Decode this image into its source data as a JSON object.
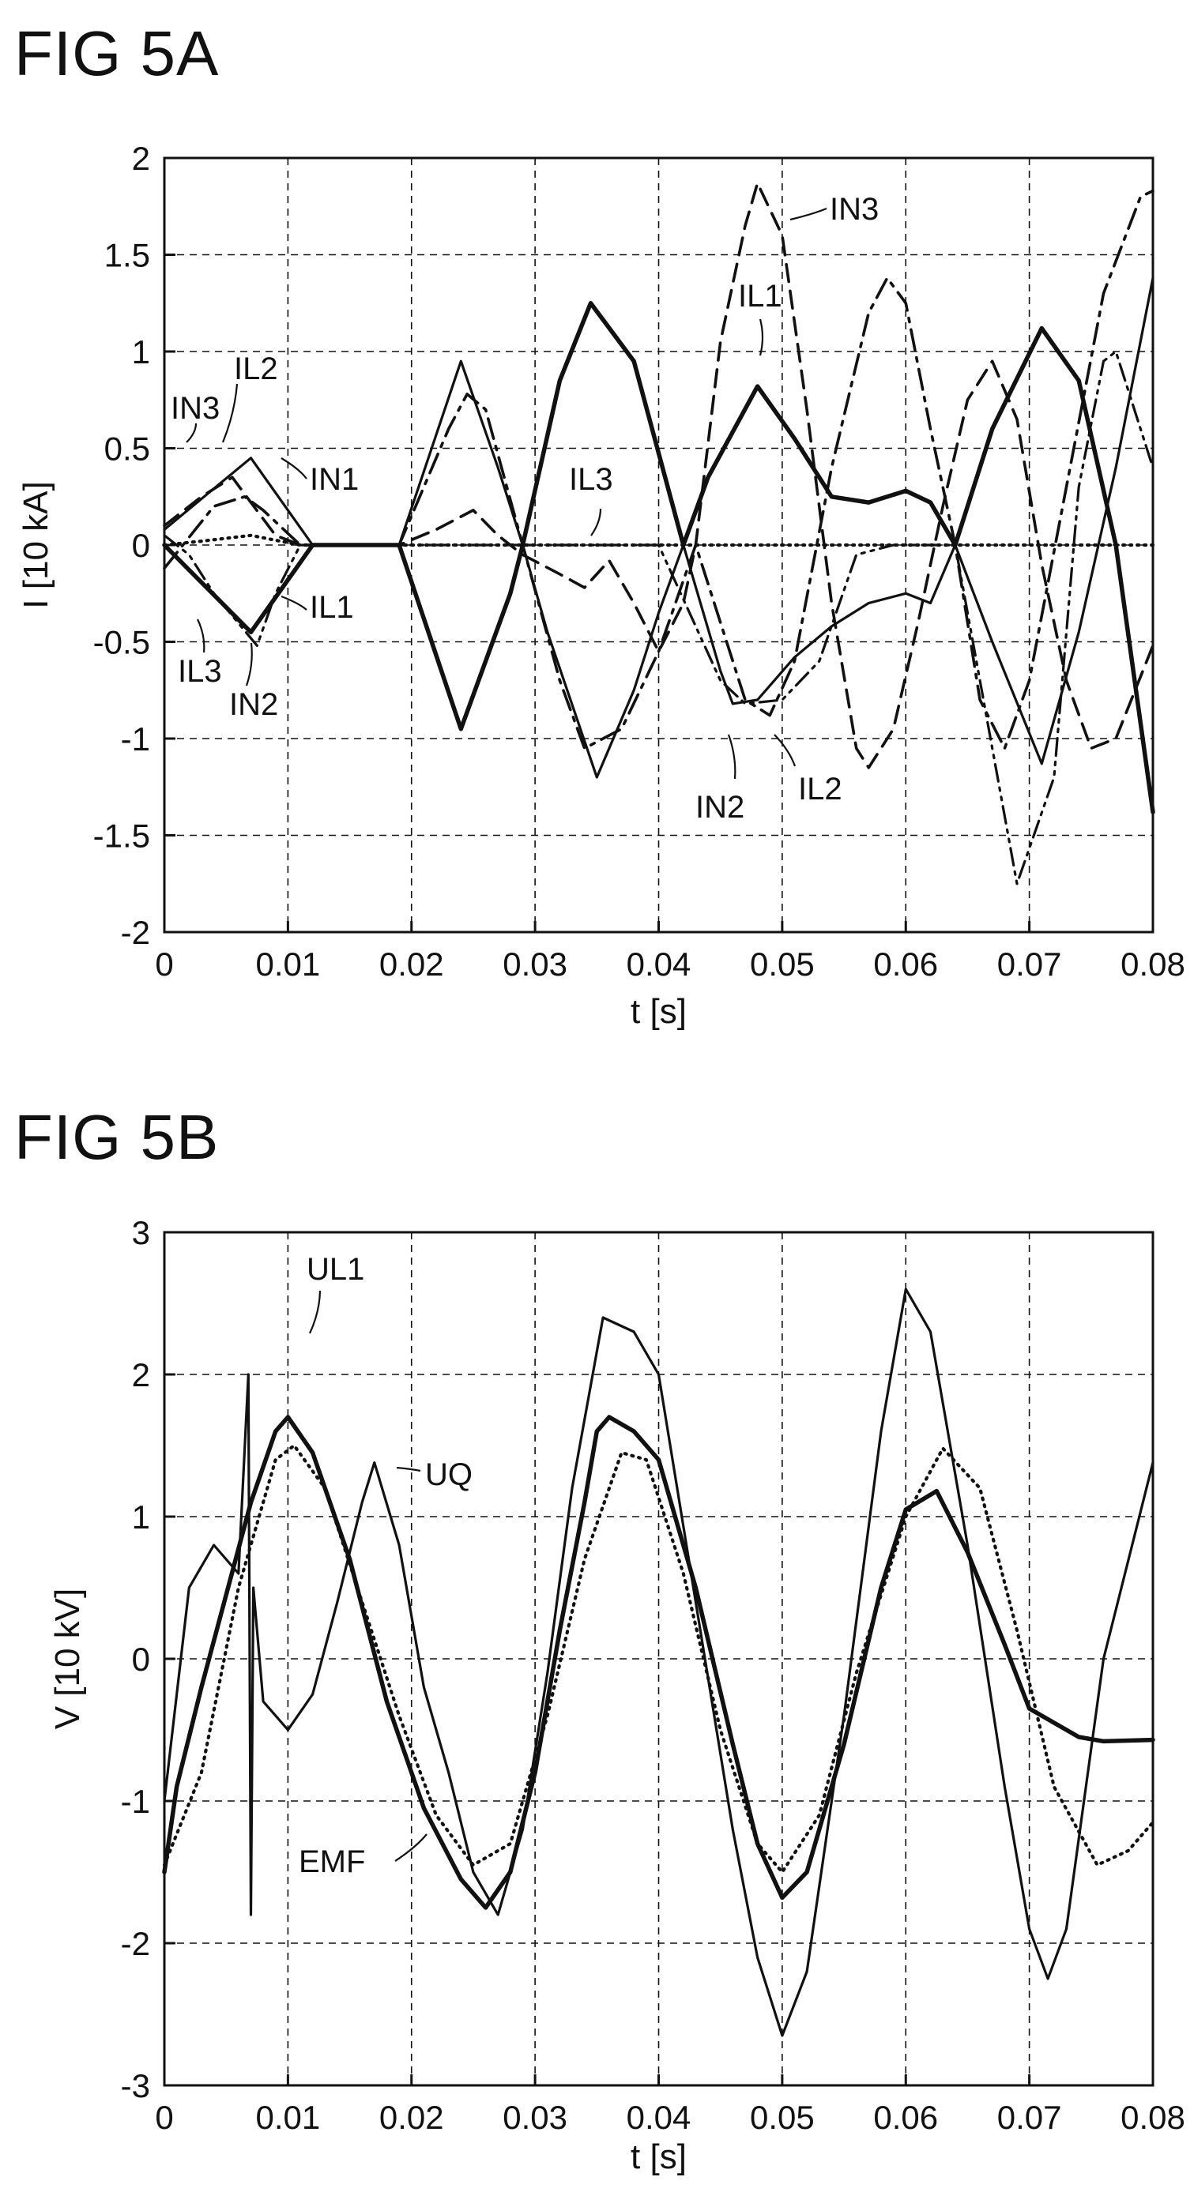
{
  "chart_data": [
    {
      "type": "line",
      "title": "FIG 5A",
      "xlabel": "t [s]",
      "ylabel": "I [10 kA]",
      "xlim": [
        0,
        0.08
      ],
      "ylim": [
        -2,
        2
      ],
      "xticks": [
        "0",
        "0.01",
        "0.02",
        "0.03",
        "0.04",
        "0.05",
        "0.06",
        "0.07",
        "0.08"
      ],
      "yticks": [
        "2",
        "1.5",
        "1",
        "0.5",
        "0",
        "-0.5",
        "-1",
        "-1.5",
        "-2"
      ],
      "grid": true,
      "series": [
        {
          "name": "IL1",
          "style": "solid-thick",
          "points": [
            [
              0,
              0
            ],
            [
              0.007,
              -0.45
            ],
            [
              0.012,
              0
            ],
            [
              0.019,
              0
            ],
            [
              0.024,
              -0.95
            ],
            [
              0.028,
              -0.25
            ],
            [
              0.029,
              0
            ],
            [
              0.032,
              0.85
            ],
            [
              0.0345,
              1.25
            ],
            [
              0.038,
              0.95
            ],
            [
              0.042,
              0
            ],
            [
              0.044,
              0.35
            ],
            [
              0.048,
              0.82
            ],
            [
              0.051,
              0.55
            ],
            [
              0.054,
              0.25
            ],
            [
              0.057,
              0.22
            ],
            [
              0.06,
              0.28
            ],
            [
              0.062,
              0.22
            ],
            [
              0.064,
              0
            ],
            [
              0.067,
              0.6
            ],
            [
              0.071,
              1.12
            ],
            [
              0.074,
              0.85
            ],
            [
              0.077,
              0
            ],
            [
              0.08,
              -1.38
            ]
          ]
        },
        {
          "name": "IL2",
          "style": "solid-thin",
          "points": [
            [
              0,
              0.08
            ],
            [
              0.007,
              0.45
            ],
            [
              0.012,
              0
            ],
            [
              0.019,
              0
            ],
            [
              0.024,
              0.95
            ],
            [
              0.027,
              0.4
            ],
            [
              0.029,
              0
            ],
            [
              0.031,
              -0.45
            ],
            [
              0.035,
              -1.2
            ],
            [
              0.038,
              -0.75
            ],
            [
              0.04,
              -0.35
            ],
            [
              0.042,
              0
            ],
            [
              0.045,
              -0.65
            ],
            [
              0.046,
              -0.82
            ],
            [
              0.048,
              -0.8
            ],
            [
              0.051,
              -0.58
            ],
            [
              0.054,
              -0.42
            ],
            [
              0.057,
              -0.3
            ],
            [
              0.06,
              -0.25
            ],
            [
              0.062,
              -0.3
            ],
            [
              0.064,
              0
            ],
            [
              0.067,
              -0.5
            ],
            [
              0.071,
              -1.13
            ],
            [
              0.074,
              -0.45
            ],
            [
              0.077,
              0.4
            ],
            [
              0.08,
              1.38
            ]
          ]
        },
        {
          "name": "IN1",
          "style": "dash-dot",
          "points": [
            [
              0,
              -0.12
            ],
            [
              0.0015,
              0
            ],
            [
              0.004,
              0.2
            ],
            [
              0.0065,
              0.25
            ],
            [
              0.008,
              0.18
            ],
            [
              0.011,
              0
            ],
            [
              0.019,
              0
            ],
            [
              0.023,
              0.6
            ],
            [
              0.0245,
              0.78
            ],
            [
              0.026,
              0.7
            ],
            [
              0.029,
              0
            ],
            [
              0.032,
              -0.7
            ],
            [
              0.034,
              -1.05
            ],
            [
              0.037,
              -0.95
            ],
            [
              0.04,
              -0.55
            ],
            [
              0.043,
              0
            ],
            [
              0.047,
              -0.8
            ],
            [
              0.049,
              -0.88
            ],
            [
              0.051,
              -0.6
            ],
            [
              0.054,
              0.4
            ],
            [
              0.057,
              1.2
            ],
            [
              0.0585,
              1.38
            ],
            [
              0.06,
              1.25
            ],
            [
              0.062,
              0.6
            ],
            [
              0.064,
              0
            ],
            [
              0.066,
              -0.8
            ],
            [
              0.068,
              -1.05
            ],
            [
              0.07,
              -0.7
            ],
            [
              0.073,
              0.3
            ],
            [
              0.076,
              1.3
            ],
            [
              0.079,
              1.8
            ],
            [
              0.08,
              1.83
            ]
          ]
        },
        {
          "name": "IN2",
          "style": "dash-dot-dot",
          "points": [
            [
              0,
              0.05
            ],
            [
              0.002,
              -0.05
            ],
            [
              0.004,
              -0.25
            ],
            [
              0.0075,
              -0.52
            ],
            [
              0.009,
              -0.25
            ],
            [
              0.011,
              0
            ],
            [
              0.019,
              0
            ],
            [
              0.024,
              0
            ],
            [
              0.029,
              0
            ],
            [
              0.034,
              0
            ],
            [
              0.04,
              0
            ],
            [
              0.045,
              -0.7
            ],
            [
              0.047,
              -0.82
            ],
            [
              0.05,
              -0.8
            ],
            [
              0.053,
              -0.6
            ],
            [
              0.056,
              -0.05
            ],
            [
              0.059,
              0
            ],
            [
              0.062,
              0
            ],
            [
              0.064,
              0
            ],
            [
              0.066,
              -0.7
            ],
            [
              0.069,
              -1.75
            ],
            [
              0.072,
              -1.2
            ],
            [
              0.074,
              0.3
            ],
            [
              0.076,
              0.95
            ],
            [
              0.077,
              1.0
            ],
            [
              0.08,
              0.4
            ]
          ]
        },
        {
          "name": "IN3",
          "style": "dashed",
          "points": [
            [
              0,
              0.1
            ],
            [
              0.003,
              0.25
            ],
            [
              0.0055,
              0.35
            ],
            [
              0.007,
              0.22
            ],
            [
              0.009,
              0.05
            ],
            [
              0.011,
              0
            ],
            [
              0.019,
              0
            ],
            [
              0.022,
              0.08
            ],
            [
              0.025,
              0.18
            ],
            [
              0.027,
              0.05
            ],
            [
              0.029,
              -0.05
            ],
            [
              0.032,
              -0.15
            ],
            [
              0.034,
              -0.22
            ],
            [
              0.036,
              -0.08
            ],
            [
              0.038,
              -0.3
            ],
            [
              0.04,
              -0.55
            ],
            [
              0.042,
              -0.3
            ],
            [
              0.043,
              0
            ],
            [
              0.045,
              1.05
            ],
            [
              0.047,
              1.65
            ],
            [
              0.048,
              1.87
            ],
            [
              0.05,
              1.6
            ],
            [
              0.052,
              0.7
            ],
            [
              0.054,
              -0.3
            ],
            [
              0.056,
              -1.05
            ],
            [
              0.057,
              -1.15
            ],
            [
              0.059,
              -0.95
            ],
            [
              0.061,
              -0.4
            ],
            [
              0.063,
              0.2
            ],
            [
              0.065,
              0.75
            ],
            [
              0.067,
              0.95
            ],
            [
              0.069,
              0.65
            ],
            [
              0.071,
              -0.1
            ],
            [
              0.073,
              -0.7
            ],
            [
              0.075,
              -1.05
            ],
            [
              0.077,
              -1.0
            ],
            [
              0.08,
              -0.52
            ]
          ]
        },
        {
          "name": "IL3",
          "style": "dotted",
          "points": [
            [
              0,
              0
            ],
            [
              0.003,
              0.02
            ],
            [
              0.007,
              0.05
            ],
            [
              0.011,
              0
            ],
            [
              0.08,
              0
            ]
          ]
        }
      ],
      "annotations": [
        "IN3",
        "IL2",
        "IN1",
        "IL1",
        "IL3",
        "IN2",
        "IL3",
        "IN3",
        "IL1",
        "IN2",
        "IL2"
      ]
    },
    {
      "type": "line",
      "title": "FIG 5B",
      "xlabel": "t [s]",
      "ylabel": "V [10 kV]",
      "xlim": [
        0,
        0.08
      ],
      "ylim": [
        -3,
        3
      ],
      "xticks": [
        "0",
        "0.01",
        "0.02",
        "0.03",
        "0.04",
        "0.05",
        "0.06",
        "0.07",
        "0.08"
      ],
      "yticks": [
        "3",
        "2",
        "1",
        "0",
        "-1",
        "-2",
        "-3"
      ],
      "grid": true,
      "series": [
        {
          "name": "UL1",
          "style": "solid-thick",
          "points": [
            [
              0,
              -1.5
            ],
            [
              0.001,
              -0.9
            ],
            [
              0.003,
              -0.2
            ],
            [
              0.005,
              0.45
            ],
            [
              0.007,
              1.1
            ],
            [
              0.009,
              1.6
            ],
            [
              0.01,
              1.7
            ],
            [
              0.012,
              1.45
            ],
            [
              0.015,
              0.7
            ],
            [
              0.018,
              -0.3
            ],
            [
              0.021,
              -1.05
            ],
            [
              0.024,
              -1.55
            ],
            [
              0.026,
              -1.75
            ],
            [
              0.028,
              -1.5
            ],
            [
              0.03,
              -0.8
            ],
            [
              0.032,
              0.2
            ],
            [
              0.034,
              1.1
            ],
            [
              0.035,
              1.6
            ],
            [
              0.036,
              1.7
            ],
            [
              0.038,
              1.6
            ],
            [
              0.04,
              1.4
            ],
            [
              0.043,
              0.5
            ],
            [
              0.046,
              -0.6
            ],
            [
              0.048,
              -1.3
            ],
            [
              0.05,
              -1.68
            ],
            [
              0.052,
              -1.5
            ],
            [
              0.055,
              -0.6
            ],
            [
              0.058,
              0.5
            ],
            [
              0.06,
              1.05
            ],
            [
              0.0625,
              1.18
            ],
            [
              0.065,
              0.75
            ],
            [
              0.068,
              0.1
            ],
            [
              0.07,
              -0.35
            ],
            [
              0.072,
              -0.45
            ],
            [
              0.074,
              -0.55
            ],
            [
              0.076,
              -0.58
            ],
            [
              0.08,
              -0.57
            ]
          ]
        },
        {
          "name": "UQ",
          "style": "solid-thin",
          "points": [
            [
              0,
              -1.0
            ],
            [
              0.002,
              0.5
            ],
            [
              0.004,
              0.8
            ],
            [
              0.006,
              0.6
            ],
            [
              0.0068,
              2.0
            ],
            [
              0.007,
              -1.8
            ],
            [
              0.0072,
              0.5
            ],
            [
              0.008,
              -0.3
            ],
            [
              0.01,
              -0.5
            ],
            [
              0.012,
              -0.25
            ],
            [
              0.014,
              0.4
            ],
            [
              0.016,
              1.1
            ],
            [
              0.017,
              1.38
            ],
            [
              0.019,
              0.8
            ],
            [
              0.021,
              -0.2
            ],
            [
              0.023,
              -0.8
            ],
            [
              0.025,
              -1.5
            ],
            [
              0.027,
              -1.8
            ],
            [
              0.029,
              -1.2
            ],
            [
              0.031,
              -0.1
            ],
            [
              0.033,
              1.2
            ],
            [
              0.0355,
              2.4
            ],
            [
              0.038,
              2.3
            ],
            [
              0.04,
              2.0
            ],
            [
              0.043,
              0.4
            ],
            [
              0.046,
              -1.2
            ],
            [
              0.048,
              -2.1
            ],
            [
              0.05,
              -2.65
            ],
            [
              0.052,
              -2.2
            ],
            [
              0.055,
              -0.4
            ],
            [
              0.058,
              1.6
            ],
            [
              0.06,
              2.6
            ],
            [
              0.062,
              2.3
            ],
            [
              0.065,
              0.8
            ],
            [
              0.068,
              -0.9
            ],
            [
              0.07,
              -1.9
            ],
            [
              0.0715,
              -2.25
            ],
            [
              0.073,
              -1.9
            ],
            [
              0.076,
              0
            ],
            [
              0.08,
              1.38
            ]
          ]
        },
        {
          "name": "EMF",
          "style": "dotted",
          "points": [
            [
              0,
              -1.45
            ],
            [
              0.003,
              -0.8
            ],
            [
              0.006,
              0.5
            ],
            [
              0.009,
              1.4
            ],
            [
              0.0105,
              1.5
            ],
            [
              0.013,
              1.2
            ],
            [
              0.016,
              0.4
            ],
            [
              0.019,
              -0.4
            ],
            [
              0.022,
              -1.1
            ],
            [
              0.025,
              -1.45
            ],
            [
              0.028,
              -1.3
            ],
            [
              0.031,
              -0.4
            ],
            [
              0.034,
              0.7
            ],
            [
              0.037,
              1.45
            ],
            [
              0.039,
              1.4
            ],
            [
              0.042,
              0.6
            ],
            [
              0.045,
              -0.5
            ],
            [
              0.048,
              -1.3
            ],
            [
              0.05,
              -1.5
            ],
            [
              0.053,
              -1.1
            ],
            [
              0.056,
              -0.1
            ],
            [
              0.06,
              1.0
            ],
            [
              0.063,
              1.48
            ],
            [
              0.066,
              1.2
            ],
            [
              0.069,
              0.2
            ],
            [
              0.072,
              -0.9
            ],
            [
              0.0755,
              -1.45
            ],
            [
              0.078,
              -1.35
            ],
            [
              0.08,
              -1.15
            ]
          ]
        }
      ],
      "annotations": [
        "UL1",
        "UQ",
        "EMF"
      ]
    }
  ]
}
